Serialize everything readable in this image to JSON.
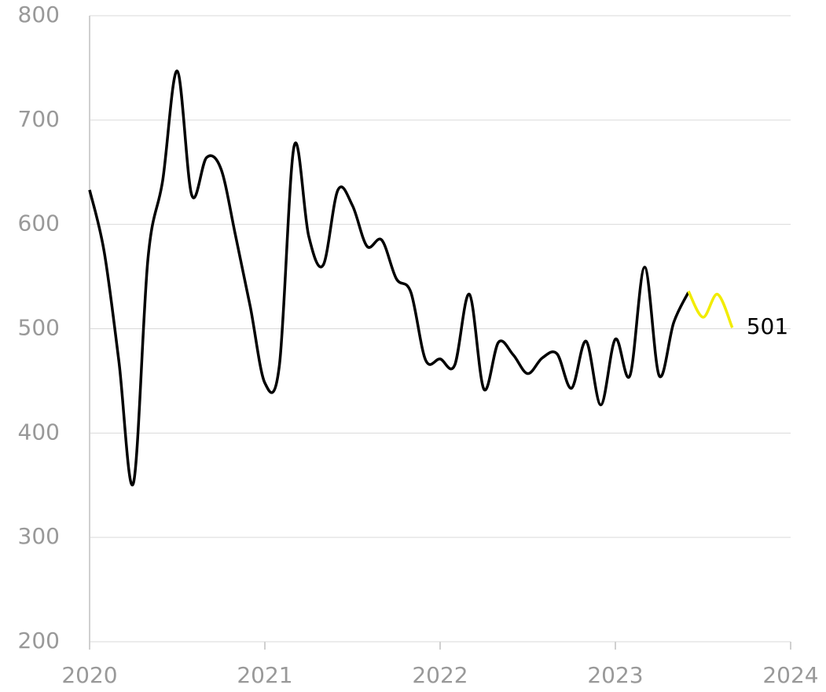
{
  "chart_data": {
    "type": "line",
    "x": [
      2020,
      2020.083,
      2020.167,
      2020.25,
      2020.333,
      2020.417,
      2020.5,
      2020.583,
      2020.667,
      2020.75,
      2020.833,
      2020.917,
      2021,
      2021.083,
      2021.167,
      2021.25,
      2021.333,
      2021.417,
      2021.5,
      2021.583,
      2021.667,
      2021.75,
      2021.833,
      2021.917,
      2022,
      2022.083,
      2022.167,
      2022.25,
      2022.333,
      2022.417,
      2022.5,
      2022.583,
      2022.667,
      2022.75,
      2022.833,
      2022.917,
      2023,
      2023.083,
      2023.167,
      2023.25,
      2023.333,
      2023.417,
      2023.5,
      2023.583,
      2023.667
    ],
    "series": [
      {
        "color": "#000000",
        "values": [
          633,
          574,
          469,
          352,
          567,
          642,
          747,
          628,
          664,
          653,
          589,
          521,
          448,
          465,
          675,
          589,
          561,
          633,
          618,
          579,
          585,
          548,
          535,
          470,
          471,
          465,
          533,
          442,
          487,
          475,
          457,
          472,
          476,
          443,
          488,
          427,
          490,
          455,
          559,
          455,
          506,
          535,
          null,
          null,
          null
        ]
      },
      {
        "color": "#f2ec00",
        "values": [
          null,
          null,
          null,
          null,
          null,
          null,
          null,
          null,
          null,
          null,
          null,
          null,
          null,
          null,
          null,
          null,
          null,
          null,
          null,
          null,
          null,
          null,
          null,
          null,
          null,
          null,
          null,
          null,
          null,
          null,
          null,
          null,
          null,
          null,
          null,
          null,
          null,
          null,
          null,
          null,
          null,
          536,
          511,
          533,
          501
        ]
      }
    ],
    "xlim": [
      2020,
      2024
    ],
    "xticks": [
      2020,
      2021,
      2022,
      2023,
      2024
    ],
    "ylim": [
      200,
      800
    ],
    "yticks": [
      200,
      300,
      400,
      500,
      600,
      700,
      800
    ],
    "grid": true
  }
}
